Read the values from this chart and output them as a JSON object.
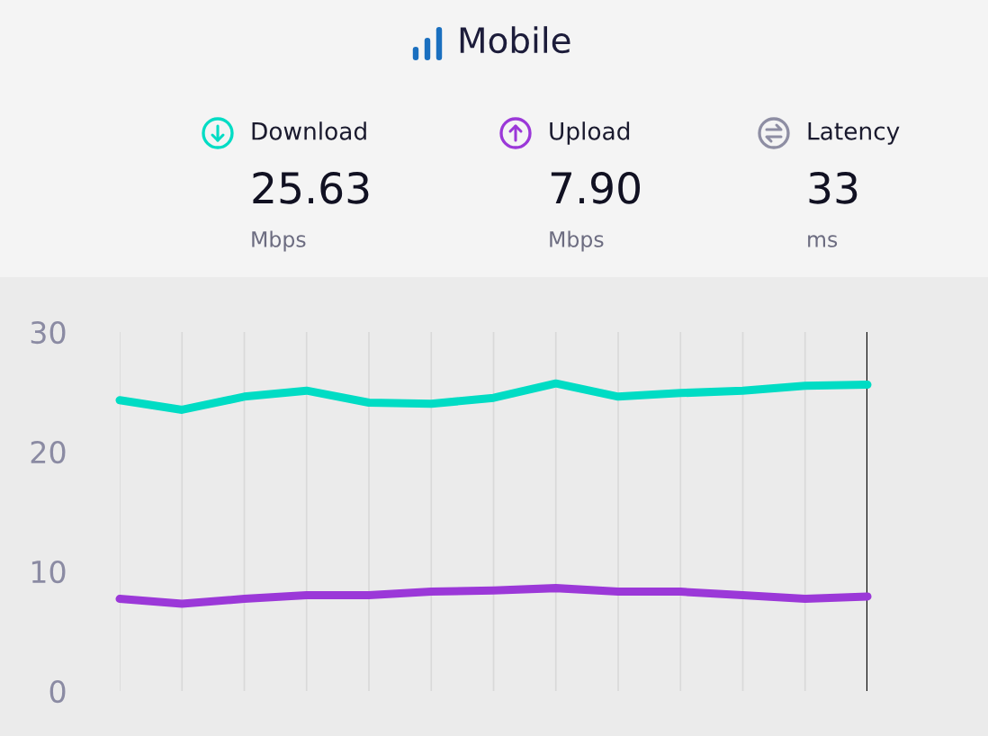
{
  "chart_data": {
    "type": "line",
    "title": "Mobile",
    "categories": [
      null,
      null,
      null,
      null,
      null,
      null,
      null,
      null,
      null,
      null,
      null,
      null,
      null
    ],
    "series": [
      {
        "name": "Download",
        "color": "#00dcc4",
        "values": [
          24.3,
          23.5,
          24.6,
          25.1,
          24.1,
          24.0,
          24.5,
          25.7,
          24.6,
          24.9,
          25.1,
          25.5,
          25.6
        ]
      },
      {
        "name": "Upload",
        "color": "#9b38d8",
        "values": [
          7.7,
          7.3,
          7.7,
          8.0,
          8.0,
          8.3,
          8.4,
          8.6,
          8.3,
          8.3,
          8.0,
          7.7,
          7.9
        ]
      }
    ],
    "ylim": [
      0,
      30
    ],
    "yticks": [
      0,
      10,
      20,
      30
    ],
    "grid": "x",
    "legend": "top",
    "tick_labels": "y",
    "annotations": [
      "25.63",
      "Mbps",
      "7.90",
      "Mbps",
      "Latency",
      "33",
      "ms"
    ]
  }
}
